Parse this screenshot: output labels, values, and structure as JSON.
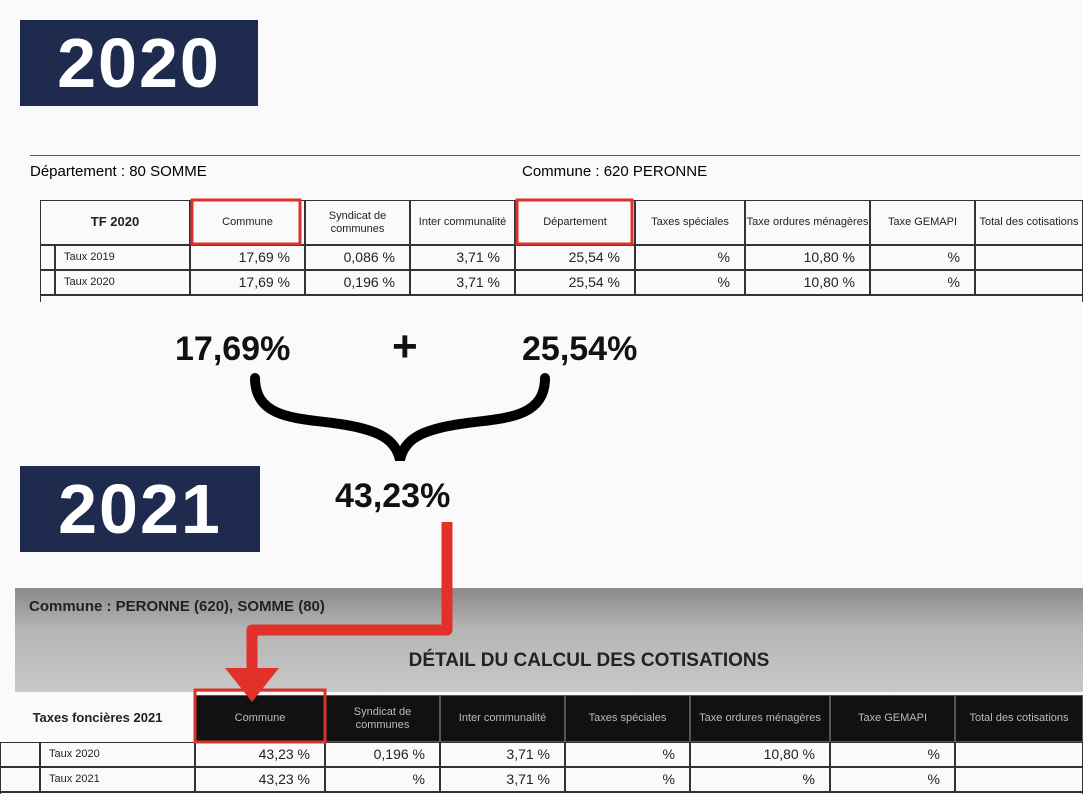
{
  "year_2020": "2020",
  "year_2021": "2021",
  "table_2020": {
    "departement": "Département : 80  SOMME",
    "commune": "Commune :    620  PERONNE",
    "headers": [
      "TF 2020",
      "Commune",
      "Syndicat de communes",
      "Inter communalité",
      "Département",
      "Taxes spéciales",
      "Taxe ordures ménagères",
      "Taxe GEMAPI",
      "Total des cotisations"
    ],
    "rows": [
      {
        "label": "Taux 2019",
        "cells": [
          "17,69 %",
          "0,086 %",
          "3,71 %",
          "25,54 %",
          "%",
          "10,80 %",
          "%"
        ]
      },
      {
        "label": "Taux 2020",
        "cells": [
          "17,69 %",
          "0,196 %",
          "3,71 %",
          "25,54 %",
          "%",
          "10,80 %",
          "%"
        ]
      }
    ]
  },
  "calc": {
    "commune_rate": "17,69%",
    "operator": "+",
    "departement_rate": "25,54%",
    "total_rate": "43,23%"
  },
  "table_2021": {
    "commune": "Commune :      PERONNE (620), SOMME (80)",
    "title": "DÉTAIL DU CALCUL DES COTISATIONS",
    "headers": [
      "Taxes foncières 2021",
      "Commune",
      "Syndicat de communes",
      "Inter communalité",
      "Taxes spéciales",
      "Taxe ordures ménagères",
      "Taxe GEMAPI",
      "Total des cotisations"
    ],
    "rows": [
      {
        "label": "Taux 2020",
        "cells": [
          "43,23 %",
          "0,196 %",
          "3,71 %",
          "%",
          "10,80 %",
          "%"
        ]
      },
      {
        "label": "Taux 2021",
        "cells": [
          "43,23 %",
          "%",
          "3,71 %",
          "%",
          "%",
          "%"
        ]
      }
    ]
  }
}
